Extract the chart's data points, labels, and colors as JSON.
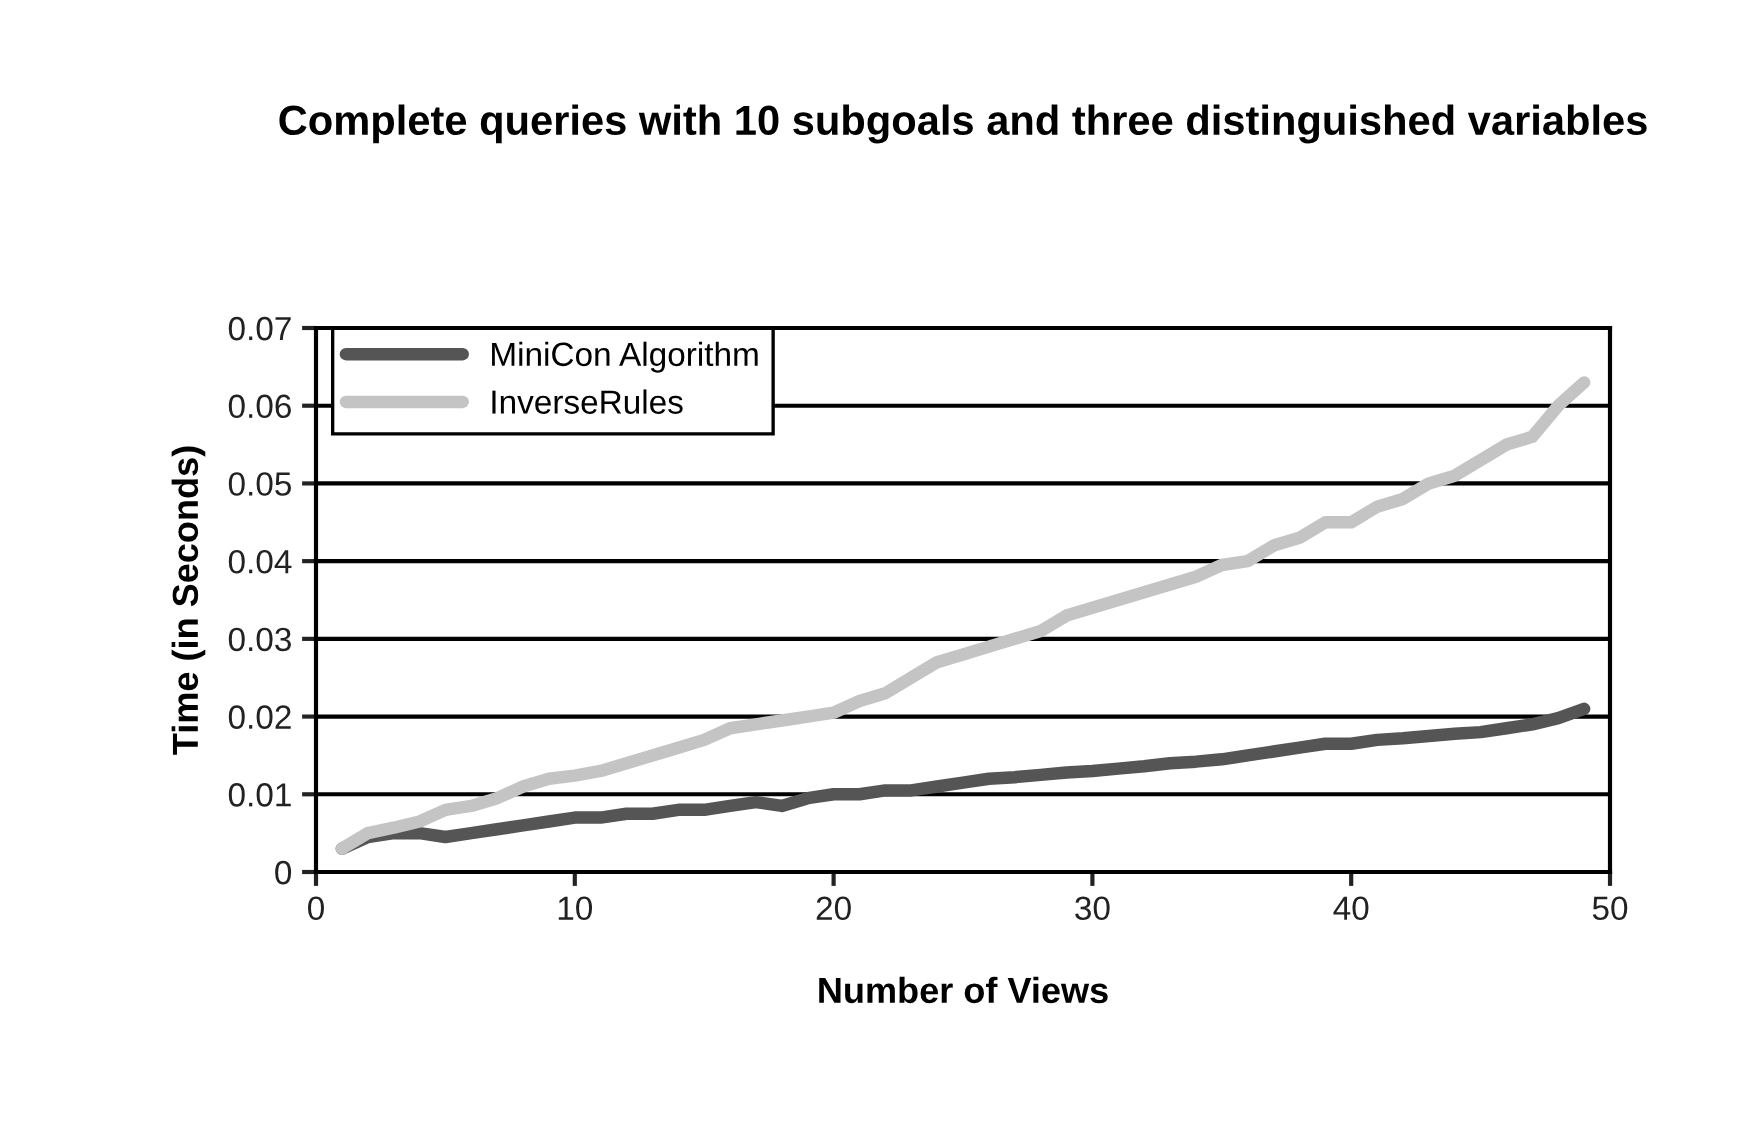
{
  "chart_data": {
    "type": "line",
    "title": "Complete queries with 10 subgoals and three distinguished variables",
    "xlabel": "Number of Views",
    "ylabel": "Time (in Seconds)",
    "x": [
      1,
      2,
      3,
      4,
      5,
      6,
      7,
      8,
      9,
      10,
      11,
      12,
      13,
      14,
      15,
      16,
      17,
      18,
      19,
      20,
      21,
      22,
      23,
      24,
      25,
      26,
      27,
      28,
      29,
      30,
      31,
      32,
      33,
      34,
      35,
      36,
      37,
      38,
      39,
      40,
      41,
      42,
      43,
      44,
      45,
      46,
      47,
      48,
      49
    ],
    "series": [
      {
        "name": "MiniCon Algorithm",
        "color": "#555555",
        "values": [
          0.003,
          0.0045,
          0.005,
          0.005,
          0.0045,
          0.005,
          0.0055,
          0.006,
          0.0065,
          0.007,
          0.007,
          0.0075,
          0.0075,
          0.008,
          0.008,
          0.0085,
          0.009,
          0.0085,
          0.0095,
          0.01,
          0.01,
          0.0105,
          0.0105,
          0.011,
          0.0115,
          0.012,
          0.0122,
          0.0125,
          0.0128,
          0.013,
          0.0133,
          0.0136,
          0.014,
          0.0142,
          0.0145,
          0.015,
          0.0155,
          0.016,
          0.0165,
          0.0165,
          0.017,
          0.0172,
          0.0175,
          0.0178,
          0.018,
          0.0185,
          0.019,
          0.0198,
          0.021
        ]
      },
      {
        "name": "InverseRules",
        "color": "#c4c4c4",
        "values": [
          0.003,
          0.005,
          0.0057,
          0.0065,
          0.008,
          0.0085,
          0.0095,
          0.011,
          0.012,
          0.0124,
          0.013,
          0.014,
          0.015,
          0.016,
          0.017,
          0.0185,
          0.019,
          0.0195,
          0.02,
          0.0205,
          0.022,
          0.023,
          0.025,
          0.027,
          0.028,
          0.029,
          0.03,
          0.031,
          0.033,
          0.034,
          0.035,
          0.036,
          0.037,
          0.038,
          0.0395,
          0.04,
          0.042,
          0.043,
          0.045,
          0.045,
          0.047,
          0.048,
          0.05,
          0.051,
          0.053,
          0.055,
          0.056,
          0.06,
          0.063
        ]
      }
    ],
    "xlim": [
      0,
      50
    ],
    "xticks": [
      0,
      10,
      20,
      30,
      40,
      50
    ],
    "ylim": [
      0,
      0.07
    ],
    "yticks": [
      0,
      0.01,
      0.02,
      0.03,
      0.04,
      0.05,
      0.06,
      0.07
    ],
    "grid": "y",
    "legend": "top left",
    "marker": "none",
    "line_style": "solid"
  }
}
